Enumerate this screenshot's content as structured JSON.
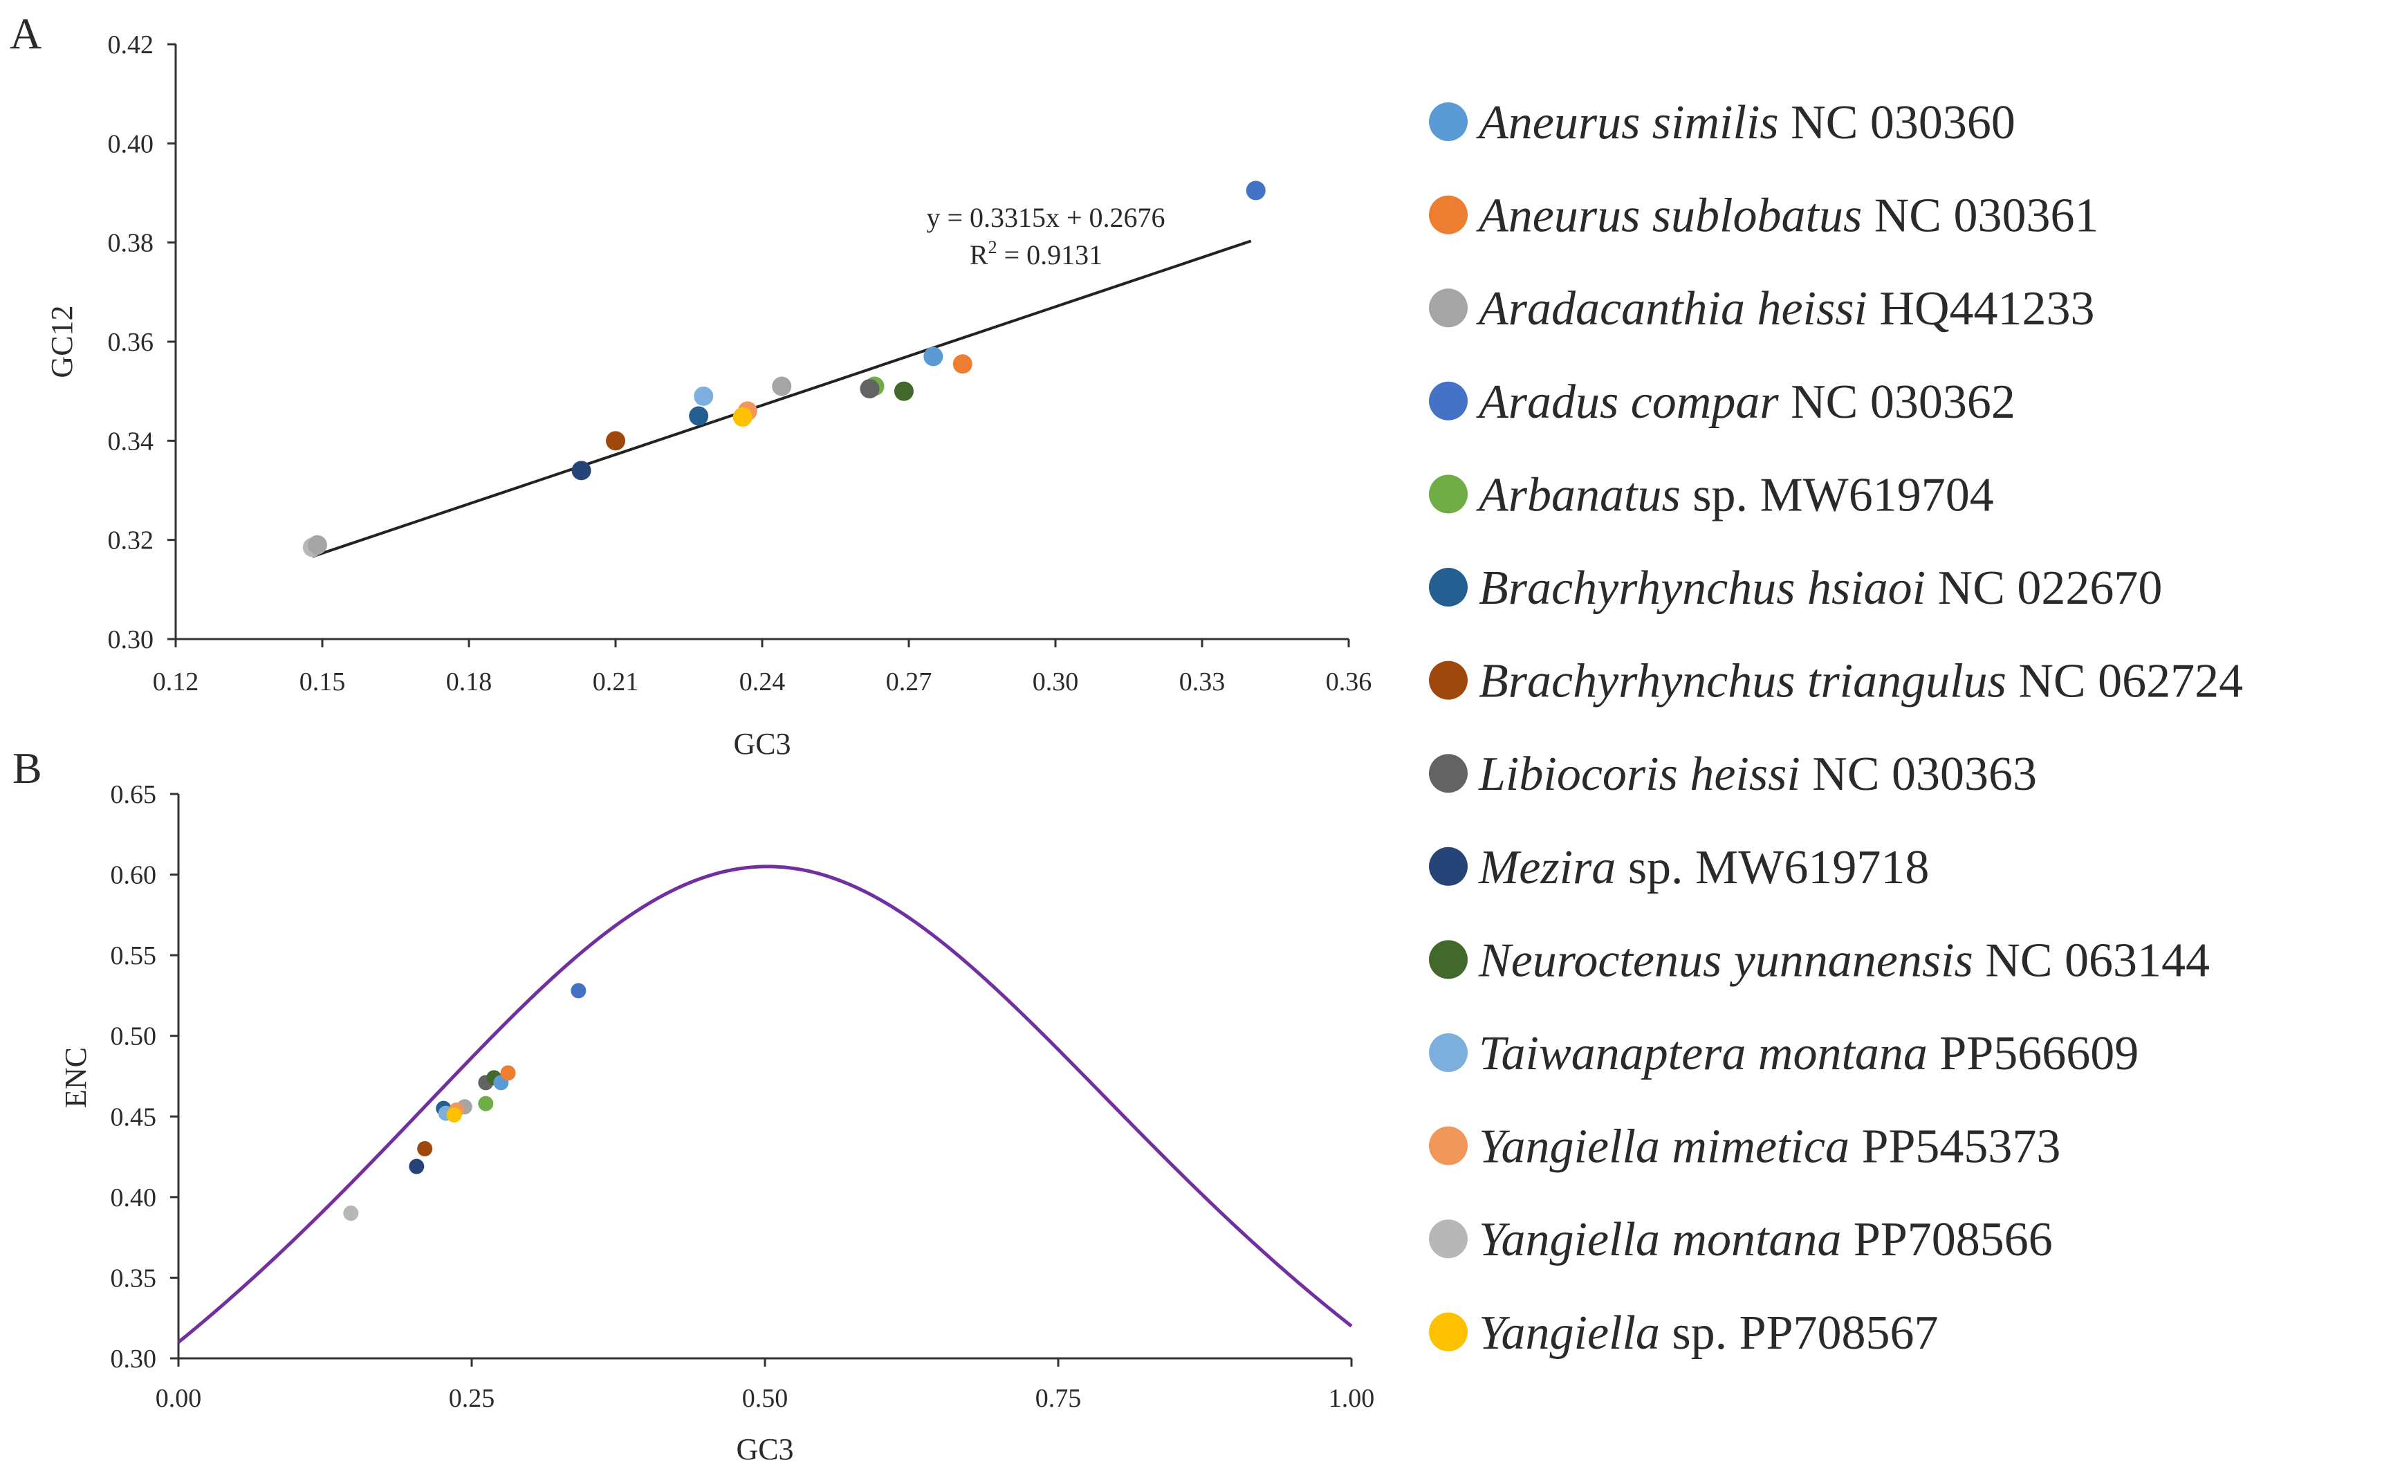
{
  "colors": {
    "A. similis": "#5b9bd5",
    "A. sublobatus": "#ed7d31",
    "A. heissi": "#a5a5a5",
    "A. compar": "#4472c4",
    "Arbanatus": "#70ad47",
    "B. hsiaoi": "#255e91",
    "B. triangulus": "#9e480e",
    "L. heissi": "#636363",
    "Mezira": "#264478",
    "N. yunnanensis": "#43682b",
    "T. montana": "#7cafdd",
    "Y. mimetica": "#f1975a",
    "Y. montana": "#b7b7b7",
    "Yangiella sp.": "#ffc000",
    "curve": "#7030a0",
    "regression": "#222222"
  },
  "legend": [
    {
      "key": "A. similis",
      "name": "Aneurus similis",
      "rest": " NC 030360"
    },
    {
      "key": "A. sublobatus",
      "name": "Aneurus sublobatus",
      "rest": " NC 030361"
    },
    {
      "key": "A. heissi",
      "name": "Aradacanthia heissi",
      "rest": " HQ441233"
    },
    {
      "key": "A. compar",
      "name": "Aradus compar",
      "rest": " NC 030362"
    },
    {
      "key": "Arbanatus",
      "name": "Arbanatus",
      "rest": " sp. MW619704"
    },
    {
      "key": "B. hsiaoi",
      "name": "Brachyrhynchus hsiaoi",
      "rest": " NC 022670"
    },
    {
      "key": "B. triangulus",
      "name": "Brachyrhynchus triangulus",
      "rest": " NC 062724"
    },
    {
      "key": "L. heissi",
      "name": "Libiocoris heissi",
      "rest": " NC 030363"
    },
    {
      "key": "Mezira",
      "name": "Mezira",
      "rest": " sp. MW619718"
    },
    {
      "key": "N. yunnanensis",
      "name": "Neuroctenus yunnanensis",
      "rest": " NC 063144"
    },
    {
      "key": "T. montana",
      "name": "Taiwanaptera montana",
      "rest": " PP566609"
    },
    {
      "key": "Y. mimetica",
      "name": "Yangiella mimetica",
      "rest": " PP545373"
    },
    {
      "key": "Y. montana",
      "name": "Yangiella montana",
      "rest": " PP708566"
    },
    {
      "key": "Yangiella sp.",
      "name": "Yangiella",
      "rest": " sp. PP708567"
    }
  ],
  "chart_data": [
    {
      "panel": "A",
      "type": "scatter",
      "xlabel": "GC3",
      "ylabel": "GC12",
      "xlim": [
        0.12,
        0.36
      ],
      "ylim": [
        0.3,
        0.42
      ],
      "xticks": [
        0.12,
        0.15,
        0.18,
        0.21,
        0.24,
        0.27,
        0.3,
        0.33,
        0.36
      ],
      "xtick_labels": [
        "0.12",
        "0.15",
        "0.18",
        "0.21",
        "0.24",
        "0.27",
        "0.30",
        "0.33",
        "0.36"
      ],
      "yticks": [
        0.3,
        0.32,
        0.34,
        0.36,
        0.38,
        0.4,
        0.42
      ],
      "ytick_labels": [
        "0.30",
        "0.32",
        "0.34",
        "0.36",
        "0.38",
        "0.40",
        "0.42"
      ],
      "regression": {
        "slope": 0.3315,
        "intercept": 0.2676,
        "x_range": [
          0.148,
          0.34
        ],
        "equation": "y = 0.3315x + 0.2676",
        "r2_prefix": "R",
        "r2_sup": "2",
        "r2_value": " = 0.9131"
      },
      "points": [
        {
          "key": "Y. montana",
          "x": 0.148,
          "y": 0.3185
        },
        {
          "key": "A. heissi",
          "x": 0.149,
          "y": 0.319
        },
        {
          "key": "Mezira",
          "x": 0.203,
          "y": 0.334
        },
        {
          "key": "B. triangulus",
          "x": 0.21,
          "y": 0.34
        },
        {
          "key": "B. hsiaoi",
          "x": 0.227,
          "y": 0.345
        },
        {
          "key": "T. montana",
          "x": 0.228,
          "y": 0.349
        },
        {
          "key": "Y. mimetica",
          "x": 0.237,
          "y": 0.346
        },
        {
          "key": "Yangiella sp.",
          "x": 0.236,
          "y": 0.3448
        },
        {
          "key": "A. heissi",
          "x": 0.244,
          "y": 0.351
        },
        {
          "key": "Arbanatus",
          "x": 0.263,
          "y": 0.351
        },
        {
          "key": "L. heissi",
          "x": 0.262,
          "y": 0.3505
        },
        {
          "key": "N. yunnanensis",
          "x": 0.269,
          "y": 0.35
        },
        {
          "key": "A. similis",
          "x": 0.275,
          "y": 0.357
        },
        {
          "key": "A. sublobatus",
          "x": 0.281,
          "y": 0.3555
        },
        {
          "key": "A. compar",
          "x": 0.341,
          "y": 0.3905
        }
      ]
    },
    {
      "panel": "B",
      "type": "scatter",
      "xlabel": "GC3",
      "ylabel": "ENC",
      "xlim": [
        0.0,
        1.0
      ],
      "ylim": [
        0.3,
        0.65
      ],
      "xticks": [
        0.0,
        0.25,
        0.5,
        0.75,
        1.0
      ],
      "xtick_labels": [
        "0.00",
        "0.25",
        "0.50",
        "0.75",
        "1.00"
      ],
      "yticks": [
        0.3,
        0.35,
        0.4,
        0.45,
        0.5,
        0.55,
        0.6,
        0.65
      ],
      "ytick_labels": [
        "0.30",
        "0.35",
        "0.40",
        "0.45",
        "0.50",
        "0.55",
        "0.60",
        "0.65"
      ],
      "curve": {
        "formula": "2 + s + 29/(s^2 + (1-s)^2), scaled by 1/100",
        "scale": 0.01
      },
      "points": [
        {
          "key": "Y. montana",
          "x": 0.147,
          "y": 0.39
        },
        {
          "key": "Mezira",
          "x": 0.203,
          "y": 0.419
        },
        {
          "key": "B. triangulus",
          "x": 0.21,
          "y": 0.43
        },
        {
          "key": "B. hsiaoi",
          "x": 0.226,
          "y": 0.455
        },
        {
          "key": "T. montana",
          "x": 0.228,
          "y": 0.452
        },
        {
          "key": "A. heissi",
          "x": 0.244,
          "y": 0.456
        },
        {
          "key": "Y. mimetica",
          "x": 0.237,
          "y": 0.454
        },
        {
          "key": "Yangiella sp.",
          "x": 0.235,
          "y": 0.451
        },
        {
          "key": "Arbanatus",
          "x": 0.262,
          "y": 0.458
        },
        {
          "key": "L. heissi",
          "x": 0.262,
          "y": 0.471
        },
        {
          "key": "N. yunnanensis",
          "x": 0.269,
          "y": 0.474
        },
        {
          "key": "A. similis",
          "x": 0.275,
          "y": 0.471
        },
        {
          "key": "A. sublobatus",
          "x": 0.281,
          "y": 0.477
        },
        {
          "key": "A. compar",
          "x": 0.341,
          "y": 0.528
        }
      ]
    }
  ],
  "panel_labels": {
    "a": "A",
    "b": "B"
  }
}
